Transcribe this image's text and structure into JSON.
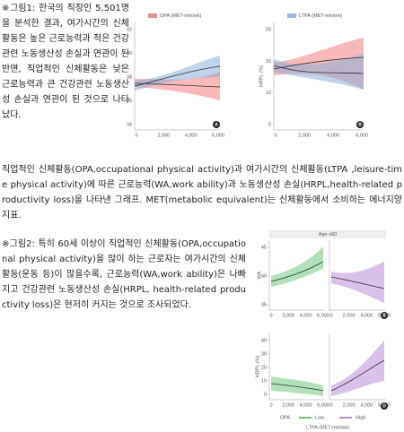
{
  "paragraphs": [
    "※그림1: 한국의 직장인 5,501명을 분석한 결과, 여가시간의 신체활동은 높은 근로능력과 적은 건강관련 노동생산성 손실과 연관이 된 반면, 직업적인 신체활동은 낮은 근로능력과 큰 건강관련 노동생산성 손실과 연관이 된 것으로 나타났다.",
    "직업적인 신체활동(OPA,occupational physical activity)과 여가시간의 신체활동(LTPA ,leisure-time physical activity)에 따른 근로능력(WA,work ability)과 노동생산성 손실(HRPL,health-related productivity loss)을 나타낸 그래프. MET(metabolic equivalent)는 신체활동에서 소비하는 에너지양 지표.",
    "※그림2: 특히 60세 이상이 직업적인 신체활동(OPA,occupational physical activity)을 많이 하는 근로자는 여가시간의 신체활동(운동 등)이 많을수록, 근로능력(WA,work ability)은 나빠지고 건강관련 노동생산성 손실(HRPL, health-related productivity loss)은 현저히 커지는 것으로 조사되었다."
  ],
  "figure1": {
    "panels": [
      {
        "legend": "OPA (MET-min/wk)",
        "yticks": [
          34,
          36,
          38,
          40,
          42
        ],
        "xticks": [
          "0",
          "2,000",
          "4,000",
          "6,000"
        ],
        "badge": "A"
      },
      {
        "legend": "LTPA (MET-min/wk)",
        "ylabel": "HRPL (%)",
        "yticks": [
          5,
          10,
          15,
          20
        ],
        "xticks": [
          "0",
          "2,000",
          "4,000",
          "6,000"
        ],
        "badge": "B"
      }
    ]
  },
  "figure2": {
    "title": "Age ≥60",
    "top_ylabel": "WA",
    "top_yticks": [
      35,
      40,
      45
    ],
    "bottom_ylabel": "HRPL (%)",
    "bottom_yticks": [
      0,
      10,
      20,
      30,
      40
    ],
    "xticks": [
      "0",
      "2,000",
      "4,000",
      "6,000"
    ],
    "badges": [
      "B",
      "D"
    ],
    "legend_title": "OPA",
    "legend": [
      "Low",
      "High"
    ],
    "xlabel": "LTPA (MET-min/wk)"
  }
}
